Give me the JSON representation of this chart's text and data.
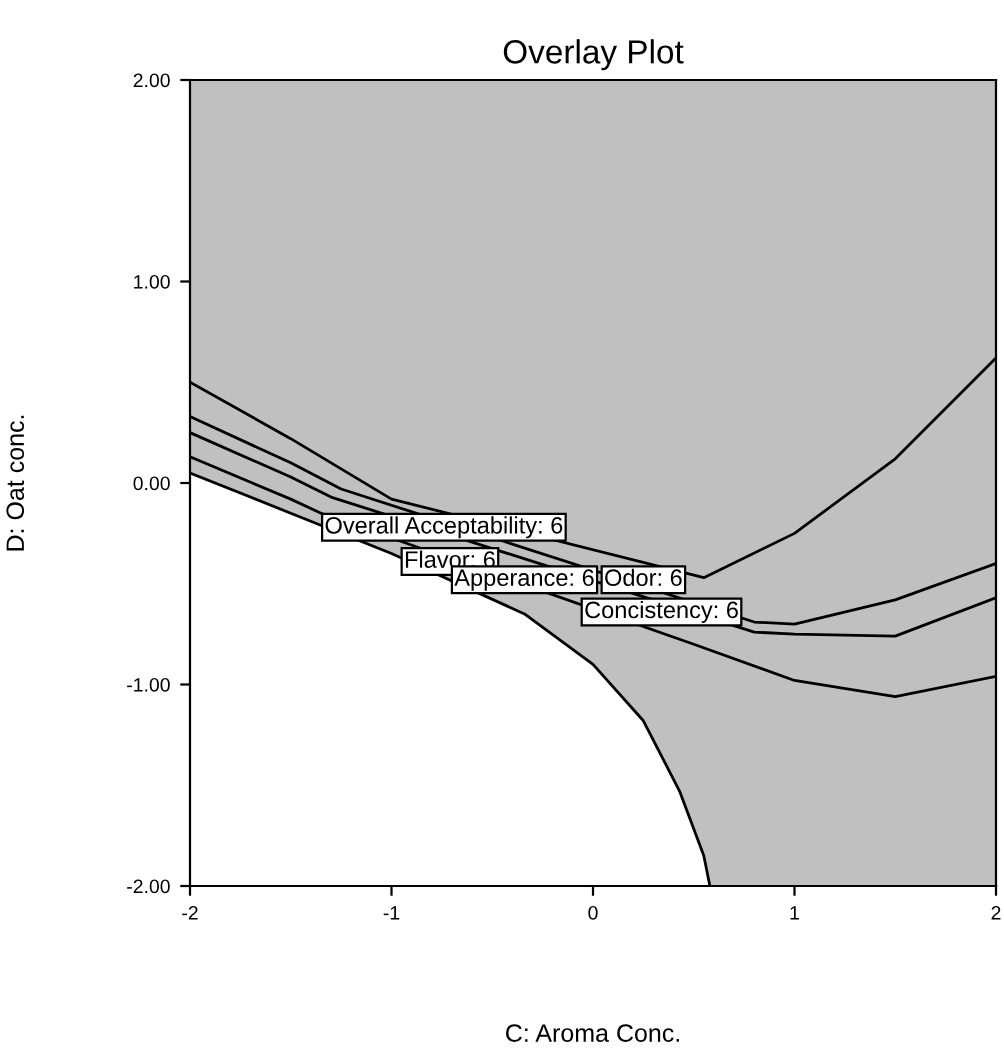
{
  "chart_data": {
    "type": "line",
    "title": "Overlay Plot",
    "xlabel": "C: Aroma Conc.",
    "ylabel": "D: Oat conc.",
    "xlim": [
      -2,
      2
    ],
    "ylim": [
      -2,
      2
    ],
    "xticks": [
      -2,
      -1,
      0,
      1,
      2
    ],
    "yticks": [
      {
        "value": -2,
        "label": "-2.00"
      },
      {
        "value": -1,
        "label": "-1.00"
      },
      {
        "value": 0,
        "label": "0.00"
      },
      {
        "value": 1,
        "label": "1.00"
      },
      {
        "value": 2,
        "label": "2.00"
      }
    ],
    "grid": false,
    "legend": false,
    "marker": "none",
    "line_style": "solid",
    "series": [
      {
        "color": "#000000",
        "x": [
          -2,
          -1.5,
          -1,
          0.55,
          1,
          1.5,
          2
        ],
        "values": [
          0.5,
          0.22,
          -0.08,
          -0.47,
          -0.25,
          0.12,
          0.62
        ]
      },
      {
        "color": "#000000",
        "x": [
          -2,
          -1.5,
          -1.25,
          0.8,
          1,
          1.5,
          2
        ],
        "values": [
          0.33,
          0.1,
          -0.03,
          -0.69,
          -0.7,
          -0.58,
          -0.4
        ]
      },
      {
        "color": "#000000",
        "x": [
          -2,
          -1.5,
          -1.3,
          0.8,
          1,
          1.5,
          2
        ],
        "values": [
          0.25,
          0.03,
          -0.07,
          -0.74,
          -0.75,
          -0.76,
          -0.57
        ]
      },
      {
        "color": "#000000",
        "x": [
          -2,
          -1.5,
          -1.35,
          0.5,
          1,
          1.5,
          2
        ],
        "values": [
          0.13,
          -0.08,
          -0.15,
          -0.8,
          -0.98,
          -1.06,
          -0.96
        ]
      },
      {
        "color": "#000000",
        "x": [
          -2,
          -1.5,
          -1,
          -0.34,
          0,
          0.25,
          0.43,
          0.55,
          0.58
        ],
        "values": [
          0.05,
          -0.15,
          -0.35,
          -0.65,
          -0.9,
          -1.18,
          -1.53,
          -1.85,
          -2
        ],
        "lower": [
          -2,
          -2,
          -2,
          -2,
          -2,
          -2,
          -2,
          -2,
          -2
        ],
        "upper": [
          0.05,
          -0.15,
          -0.35,
          -0.65,
          -0.9,
          -1.18,
          -1.53,
          -1.85,
          -2
        ]
      }
    ],
    "annotations": [
      {
        "text": "Overall Acceptability: 6",
        "x": -0.74,
        "y": -0.22
      },
      {
        "text": "Flavor: 6",
        "x": -0.71,
        "y": -0.39
      },
      {
        "text": "Apperance: 6",
        "x": -0.34,
        "y": -0.48
      },
      {
        "text": "Odor: 6",
        "x": 0.25,
        "y": -0.48
      },
      {
        "text": "Concistency: 6",
        "x": 0.34,
        "y": -0.64
      }
    ]
  }
}
